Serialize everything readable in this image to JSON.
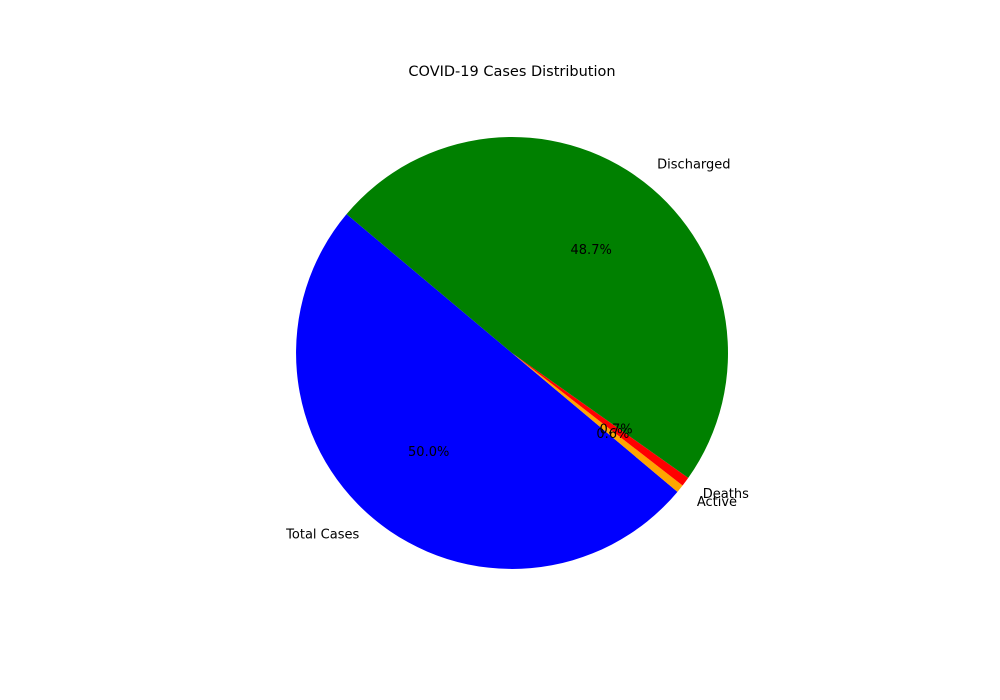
{
  "chart_data": {
    "type": "pie",
    "title": "COVID-19 Cases Distribution",
    "start_angle": 140,
    "direction": "counterclockwise",
    "categories": [
      "Total Cases",
      "Active",
      "Deaths",
      "Discharged"
    ],
    "values": [
      50.0,
      0.6,
      0.7,
      48.7
    ],
    "labels": [
      "50.0%",
      "0.6%",
      "0.7%",
      "48.7%"
    ],
    "colors": [
      "#0000ff",
      "#ffa500",
      "#ff0000",
      "#008000"
    ]
  }
}
